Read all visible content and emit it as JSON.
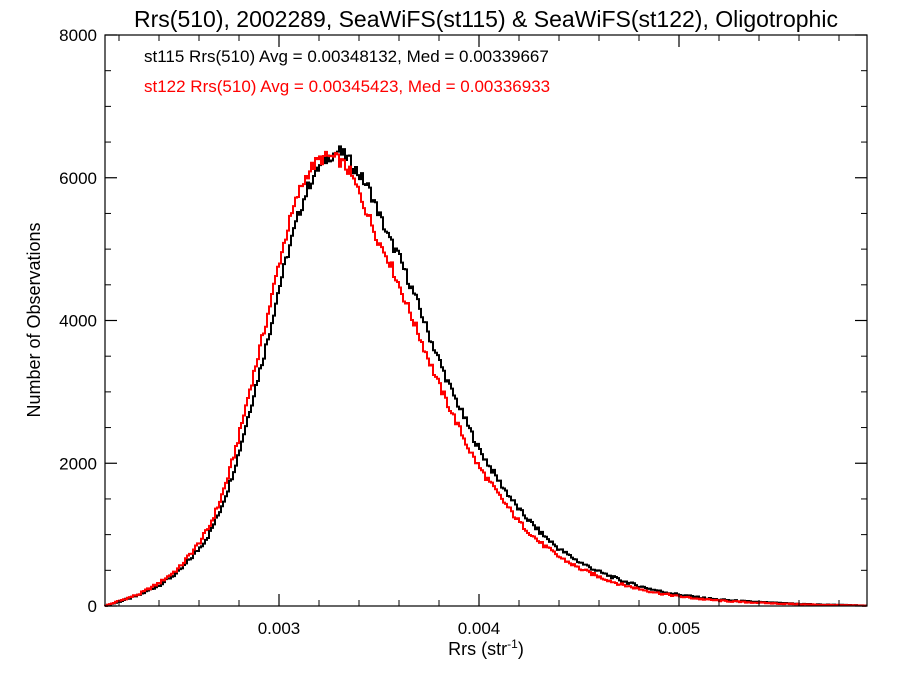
{
  "chart_data": {
    "type": "line",
    "title": "Rrs(510), 2002289, SeaWiFS(st115) & SeaWiFS(st122), Oligotrophic",
    "xlabel": "Rrs (str",
    "xlabel_superscript": "-1",
    "xlabel_suffix": ")",
    "ylabel": "Number of Observations",
    "xlim": [
      0.00213,
      0.00594
    ],
    "ylim": [
      0,
      8000
    ],
    "xticks": [
      {
        "value": 0.003,
        "label": "0.003"
      },
      {
        "value": 0.004,
        "label": "0.004"
      },
      {
        "value": 0.005,
        "label": "0.005"
      }
    ],
    "yticks": [
      {
        "value": 0,
        "label": "0"
      },
      {
        "value": 2000,
        "label": "2000"
      },
      {
        "value": 4000,
        "label": "4000"
      },
      {
        "value": 6000,
        "label": "6000"
      },
      {
        "value": 8000,
        "label": "8000"
      }
    ],
    "grid": false,
    "legend_placement": "top-left",
    "annotations": [
      {
        "text": "st115 Rrs(510) Avg = 0.00348132, Med = 0.00339667",
        "color": "#000000"
      },
      {
        "text": "st122 Rrs(510) Avg = 0.00345423, Med = 0.00336933",
        "color": "#ff0000"
      }
    ],
    "series": [
      {
        "color": "#000000",
        "x": [
          0.00213,
          0.0022,
          0.0023,
          0.0024,
          0.0025,
          0.0026,
          0.00265,
          0.0027,
          0.00275,
          0.0028,
          0.00285,
          0.0029,
          0.00295,
          0.003,
          0.00305,
          0.0031,
          0.00315,
          0.0032,
          0.00325,
          0.0033,
          0.00335,
          0.0034,
          0.00345,
          0.0035,
          0.00355,
          0.0036,
          0.00365,
          0.0037,
          0.00375,
          0.0038,
          0.00385,
          0.0039,
          0.00395,
          0.004,
          0.0041,
          0.0042,
          0.0043,
          0.0044,
          0.0045,
          0.0046,
          0.0047,
          0.0048,
          0.0049,
          0.005,
          0.0051,
          0.0052,
          0.0053,
          0.0054,
          0.0055,
          0.0056,
          0.0057,
          0.0058,
          0.00594
        ],
        "y": [
          0,
          60,
          150,
          290,
          480,
          800,
          1000,
          1300,
          1680,
          2150,
          2700,
          3250,
          3800,
          4450,
          5000,
          5500,
          5900,
          6150,
          6300,
          6380,
          6250,
          6050,
          5850,
          5500,
          5150,
          4900,
          4550,
          4200,
          3800,
          3450,
          3100,
          2800,
          2500,
          2200,
          1750,
          1350,
          1050,
          800,
          620,
          480,
          370,
          280,
          210,
          160,
          120,
          90,
          70,
          55,
          40,
          30,
          20,
          15,
          5
        ]
      },
      {
        "color": "#ff0000",
        "x": [
          0.00213,
          0.0022,
          0.0023,
          0.0024,
          0.0025,
          0.0026,
          0.00265,
          0.0027,
          0.00275,
          0.0028,
          0.00285,
          0.0029,
          0.00295,
          0.003,
          0.00305,
          0.0031,
          0.00315,
          0.0032,
          0.00325,
          0.0033,
          0.00335,
          0.0034,
          0.00345,
          0.0035,
          0.00355,
          0.0036,
          0.00365,
          0.0037,
          0.00375,
          0.0038,
          0.00385,
          0.0039,
          0.00395,
          0.004,
          0.0041,
          0.0042,
          0.0043,
          0.0044,
          0.0045,
          0.0046,
          0.0047,
          0.0048,
          0.0049,
          0.005,
          0.0051,
          0.0052,
          0.0053,
          0.0054,
          0.0055,
          0.0056,
          0.0057,
          0.0058,
          0.00594
        ],
        "y": [
          0,
          70,
          165,
          320,
          530,
          880,
          1100,
          1430,
          1850,
          2380,
          2980,
          3550,
          4150,
          4800,
          5350,
          5800,
          6100,
          6250,
          6300,
          6250,
          6100,
          5800,
          5450,
          5100,
          4850,
          4500,
          4150,
          3800,
          3450,
          3100,
          2800,
          2500,
          2200,
          1950,
          1550,
          1180,
          900,
          690,
          530,
          410,
          310,
          240,
          180,
          135,
          100,
          75,
          58,
          45,
          34,
          25,
          17,
          12,
          4
        ]
      }
    ]
  }
}
